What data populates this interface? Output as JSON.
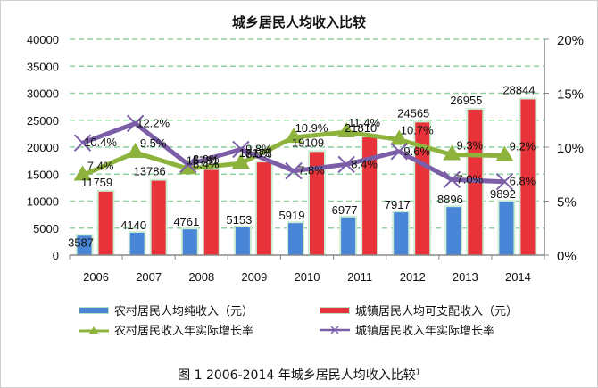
{
  "chart_data": {
    "type": "bar",
    "title": "城乡居民人均收入比较",
    "categories": [
      "2006",
      "2007",
      "2008",
      "2009",
      "2010",
      "2011",
      "2012",
      "2013",
      "2014"
    ],
    "series": [
      {
        "name": "农村居民人均纯收入（元）",
        "type": "bar",
        "axis": "left",
        "color": "#4a86d8",
        "values": [
          3587,
          4140,
          4761,
          5153,
          5919,
          6977,
          7917,
          8896,
          9892
        ]
      },
      {
        "name": "城镇居民人均可支配收入（元）",
        "type": "bar",
        "axis": "left",
        "color": "#e8333a",
        "values": [
          11759,
          13786,
          15781,
          17175,
          19109,
          21810,
          24565,
          26955,
          28844
        ]
      },
      {
        "name": "农村居民收入年实际增长率",
        "type": "line",
        "axis": "right",
        "marker": "triangle",
        "color": "#8db33c",
        "values": [
          7.4,
          9.5,
          8.0,
          8.5,
          10.9,
          11.4,
          10.7,
          9.3,
          9.2
        ],
        "labels": [
          "7.4%",
          "9.5%",
          "8.0%",
          "8.5%",
          "10.9%",
          "11.4%",
          "10.7%",
          "9.3%",
          "9.2%"
        ]
      },
      {
        "name": "城镇居民收入年实际增长率",
        "type": "line",
        "axis": "right",
        "marker": "x",
        "color": "#7b5ea7",
        "values": [
          10.4,
          12.2,
          8.4,
          9.8,
          7.8,
          8.4,
          9.6,
          7.0,
          6.8
        ],
        "labels": [
          "10.4%",
          "12.2%",
          "8.4%",
          "9.8%",
          "7.8%",
          "8.4%",
          "9.6%",
          "7.0%",
          "6.8%"
        ]
      }
    ],
    "y_left": {
      "ylim": [
        0,
        40000
      ],
      "ticks": [
        "0",
        "5000",
        "10000",
        "15000",
        "20000",
        "25000",
        "30000",
        "35000",
        "40000"
      ],
      "tick_values": [
        0,
        5000,
        10000,
        15000,
        20000,
        25000,
        30000,
        35000,
        40000
      ]
    },
    "y_right": {
      "ylim": [
        0,
        20
      ],
      "ticks": [
        "0%",
        "5%",
        "10%",
        "15%",
        "20%"
      ],
      "tick_values": [
        0,
        5,
        10,
        15,
        20
      ]
    },
    "xlabel": "",
    "ylabel": "",
    "grid": true,
    "gridline_color": "#8fd3a0",
    "legend_position": "bottom"
  },
  "legend": {
    "rural_income": "农村居民人均纯收入（元）",
    "urban_income": "城镇居民人均可支配收入（元）",
    "rural_growth": "农村居民收入年实际增长率",
    "urban_growth": "城镇居民收入年实际增长率"
  },
  "caption": {
    "text": "图 1 2006-2014 年城乡居民人均收入比较",
    "footnote_mark": "1"
  }
}
